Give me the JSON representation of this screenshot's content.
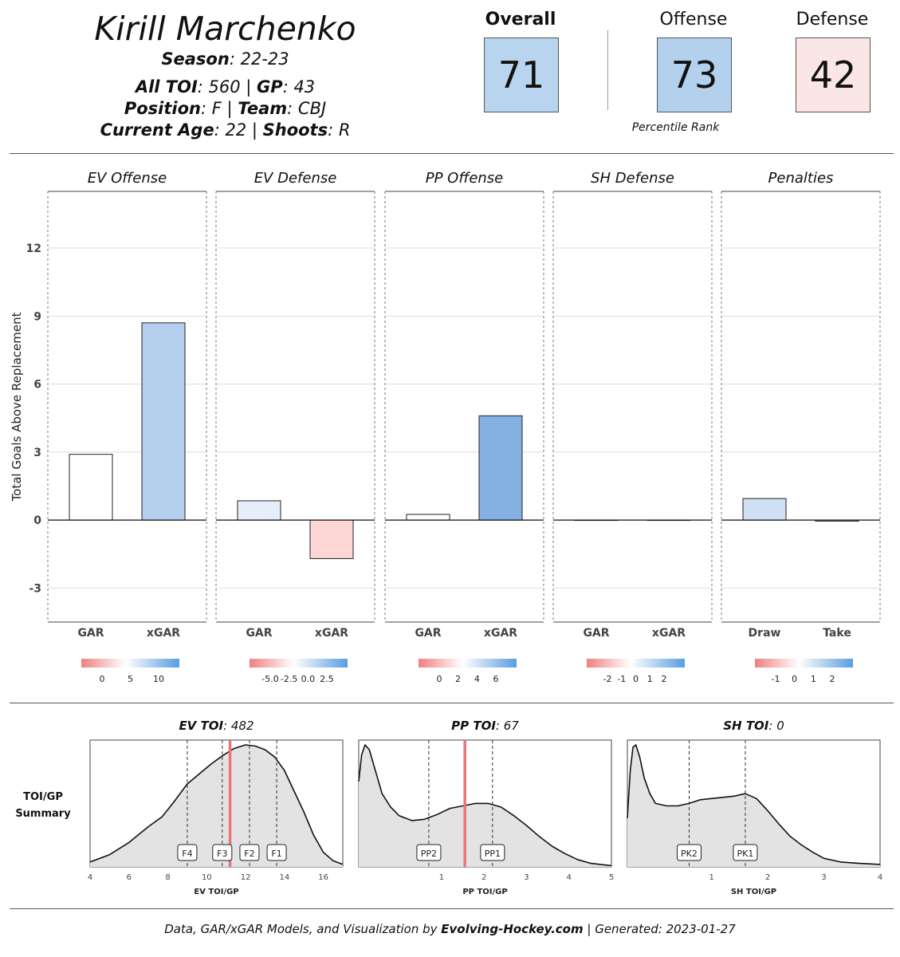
{
  "header": {
    "name": "Kirill Marchenko",
    "season_label": "Season",
    "season_value": ": 22-23",
    "toi_label": "All TOI",
    "toi_value": ": 560 | ",
    "gp_label": "GP",
    "gp_value": ": 43",
    "position_label": "Position",
    "position_value": ": F | ",
    "team_label": "Team",
    "team_value": ": CBJ",
    "age_label": "Current Age",
    "age_value": ": 22 | ",
    "shoots_label": "Shoots",
    "shoots_value": ": R"
  },
  "ranks": {
    "overall_label": "Overall",
    "overall_value": "71",
    "offense_label": "Offense",
    "offense_value": "73",
    "defense_label": "Defense",
    "defense_value": "42",
    "percentile_note": "Percentile Rank"
  },
  "colors": {
    "overall_fill": "#b8d4ef",
    "offense_fill": "#b3d0ed",
    "defense_fill": "#fbe6e6",
    "neg": "#f08080",
    "pos": "#5a9de0"
  },
  "chart_data": [
    {
      "type": "bar",
      "ylabel": "Total Goals Above Replacement",
      "ylim": [
        -4.5,
        14.5
      ],
      "yticks": [
        -3,
        0,
        3,
        6,
        9,
        12
      ],
      "panels": [
        {
          "title": "EV Offense",
          "categories": [
            "GAR",
            "xGAR"
          ],
          "values": [
            2.9,
            8.7
          ],
          "fills": [
            "#ffffff",
            "#b4cfee"
          ],
          "legend_ticks": [
            "0",
            "5",
            "10"
          ]
        },
        {
          "title": "EV Defense",
          "categories": [
            "GAR",
            "xGAR"
          ],
          "values": [
            0.85,
            -1.7
          ],
          "fills": [
            "#e6eef9",
            "#fdd5d5"
          ],
          "legend_ticks": [
            "-5.0",
            "-2.5",
            "0.0",
            "2.5"
          ]
        },
        {
          "title": "PP Offense",
          "categories": [
            "GAR",
            "xGAR"
          ],
          "values": [
            0.25,
            4.6
          ],
          "fills": [
            "#ffffff",
            "#85b1e2"
          ],
          "legend_ticks": [
            "0",
            "2",
            "4",
            "6"
          ]
        },
        {
          "title": "SH Defense",
          "categories": [
            "GAR",
            "xGAR"
          ],
          "values": [
            0,
            0
          ],
          "fills": [
            "#ffffff",
            "#ffffff"
          ],
          "legend_ticks": [
            "-2",
            "-1",
            "0",
            "1",
            "2"
          ]
        },
        {
          "title": "Penalties",
          "categories": [
            "Draw",
            "Take"
          ],
          "values": [
            0.95,
            -0.05
          ],
          "fills": [
            "#cfdff4",
            "#ffffff"
          ],
          "legend_ticks": [
            "-1",
            "0",
            "1",
            "2"
          ]
        }
      ]
    },
    {
      "type": "area",
      "title_label": "EV TOI",
      "title_value": ": 482",
      "xlabel": "EV TOI/GP",
      "xlim": [
        4,
        17
      ],
      "xticks": [
        "4",
        "6",
        "8",
        "10",
        "12",
        "14",
        "16"
      ],
      "xtick_values": [
        4,
        6,
        8,
        10,
        12,
        14,
        16
      ],
      "marker": 11.2,
      "lines": [
        {
          "label": "F4",
          "x": 9.0
        },
        {
          "label": "F3",
          "x": 10.8
        },
        {
          "label": "F2",
          "x": 12.2
        },
        {
          "label": "F1",
          "x": 13.6
        }
      ],
      "density_x": [
        4,
        5,
        6,
        7,
        7.7,
        8.3,
        9,
        9.6,
        10.2,
        10.8,
        11.4,
        12,
        12.5,
        13,
        13.5,
        14,
        14.5,
        15,
        15.5,
        16,
        16.5,
        17
      ],
      "density_y": [
        0.04,
        0.1,
        0.2,
        0.33,
        0.41,
        0.53,
        0.68,
        0.76,
        0.84,
        0.91,
        0.97,
        1.0,
        0.99,
        0.96,
        0.9,
        0.79,
        0.62,
        0.45,
        0.26,
        0.12,
        0.05,
        0.02
      ]
    },
    {
      "type": "area",
      "title_label": "PP TOI",
      "title_value": ": 67",
      "xlabel": "PP TOI/GP",
      "xlim": [
        -0.95,
        5
      ],
      "xticks": [
        "1",
        "2",
        "3",
        "4",
        "5"
      ],
      "xtick_values": [
        1,
        2,
        3,
        4,
        5
      ],
      "marker": 1.55,
      "lines": [
        {
          "label": "PP2",
          "x": 0.7
        },
        {
          "label": "PP1",
          "x": 2.2
        }
      ],
      "density_x": [
        -0.95,
        -0.88,
        -0.8,
        -0.7,
        -0.55,
        -0.4,
        -0.2,
        0,
        0.3,
        0.6,
        0.9,
        1.2,
        1.5,
        1.8,
        2.1,
        2.4,
        2.7,
        3.0,
        3.3,
        3.6,
        3.9,
        4.2,
        4.5,
        5.0
      ],
      "density_y": [
        0.7,
        0.92,
        1.0,
        0.96,
        0.78,
        0.6,
        0.49,
        0.42,
        0.38,
        0.39,
        0.43,
        0.48,
        0.5,
        0.52,
        0.52,
        0.49,
        0.42,
        0.34,
        0.25,
        0.17,
        0.11,
        0.06,
        0.03,
        0.01
      ]
    },
    {
      "type": "area",
      "title_label": "SH TOI",
      "title_value": ": 0",
      "xlabel": "SH TOI/GP",
      "xlim": [
        -0.5,
        4
      ],
      "xticks": [
        "1",
        "2",
        "3",
        "4"
      ],
      "xtick_values": [
        1,
        2,
        3,
        4
      ],
      "marker": null,
      "lines": [
        {
          "label": "PK2",
          "x": 0.6
        },
        {
          "label": "PK1",
          "x": 1.6
        }
      ],
      "density_x": [
        -0.5,
        -0.45,
        -0.4,
        -0.35,
        -0.28,
        -0.2,
        -0.1,
        0,
        0.2,
        0.4,
        0.6,
        0.8,
        1.0,
        1.2,
        1.4,
        1.6,
        1.8,
        2.0,
        2.2,
        2.4,
        2.6,
        2.8,
        3.0,
        3.3,
        3.6,
        4.0
      ],
      "density_y": [
        0.4,
        0.78,
        0.98,
        1.0,
        0.9,
        0.73,
        0.6,
        0.52,
        0.5,
        0.5,
        0.52,
        0.55,
        0.56,
        0.57,
        0.58,
        0.6,
        0.56,
        0.46,
        0.35,
        0.25,
        0.18,
        0.12,
        0.07,
        0.04,
        0.03,
        0.02
      ]
    }
  ],
  "toi_summary_label": "TOI/GP\nSummary",
  "footer": {
    "prefix": "Data, GAR/xGAR Models, and Visualization by ",
    "brand": "Evolving-Hockey.com",
    "suffix": " | Generated: 2023-01-27"
  }
}
